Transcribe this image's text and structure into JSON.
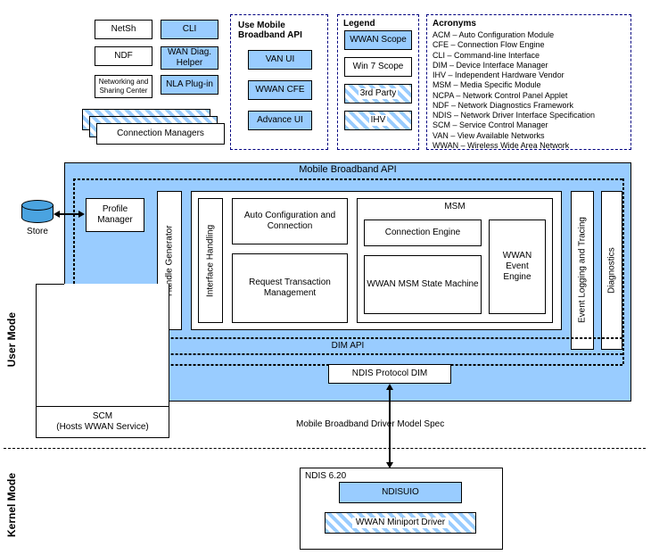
{
  "topRow": {
    "netsh": "NetSh",
    "ndf": "NDF",
    "nsc": "Networking and Sharing Center",
    "cli": "CLI",
    "wanDiag": "WAN Diag. Helper",
    "nla": "NLA Plug-in",
    "connMgr": "Connection Managers"
  },
  "apiGroup": {
    "title": "Use Mobile Broadband API",
    "vanui": "VAN UI",
    "wwancfe": "WWAN CFE",
    "advui": "Advance UI"
  },
  "legend": {
    "title": "Legend",
    "wwanScope": "WWAN Scope",
    "win7": "Win 7 Scope",
    "thirdParty": "3rd Party",
    "ihv": "IHV"
  },
  "acronyms": {
    "title": "Acronyms",
    "items": [
      "ACM – Auto Configuration Module",
      "CFE – Connection Flow Engine",
      "CLI – Command-line Interface",
      "DIM – Device Interface Manager",
      "IHV – Independent Hardware Vendor",
      "MSM – Media Specific Module",
      "NCPA – Network Control Panel Applet",
      "NDF – Network Diagnostics Framework",
      "NDIS – Network Driver Interface Specification",
      "SCM – Service Control Manager",
      "VAN – View Available Networks",
      "WWAN – Wireless Wide Area Network"
    ]
  },
  "mbapi": "Mobile Broadband API",
  "store": "Store",
  "profileMgr": "Profile Manager",
  "handleGen": "Handle Generator",
  "ifaceHandling": "Interface Handling",
  "acc": "Auto Configuration and Connection",
  "rtm": "Request Transaction Management",
  "msm": {
    "title": "MSM",
    "connEngine": "Connection Engine",
    "stateMachine": "WWAN MSM State Machine",
    "eventEngine": "WWAN Event Engine"
  },
  "logging": "Event Logging and Tracing",
  "diagnostics": "Diagnostics",
  "dimApi": "DIM API",
  "ndisDim": "NDIS Protocol DIM",
  "wwanService": "WWAN Service",
  "scm": "SCM\n(Hosts WWAN Service)",
  "driverSpec": "Mobile Broadband Driver Model Spec",
  "ndis620": "NDIS 6.20",
  "ndisuio": "NDISUIO",
  "miniport": "WWAN Miniport Driver",
  "modes": {
    "user": "User Mode",
    "kernel": "Kernel Mode"
  },
  "colors": {
    "blue": "#99ccff",
    "dashedBorder": "#000080"
  }
}
